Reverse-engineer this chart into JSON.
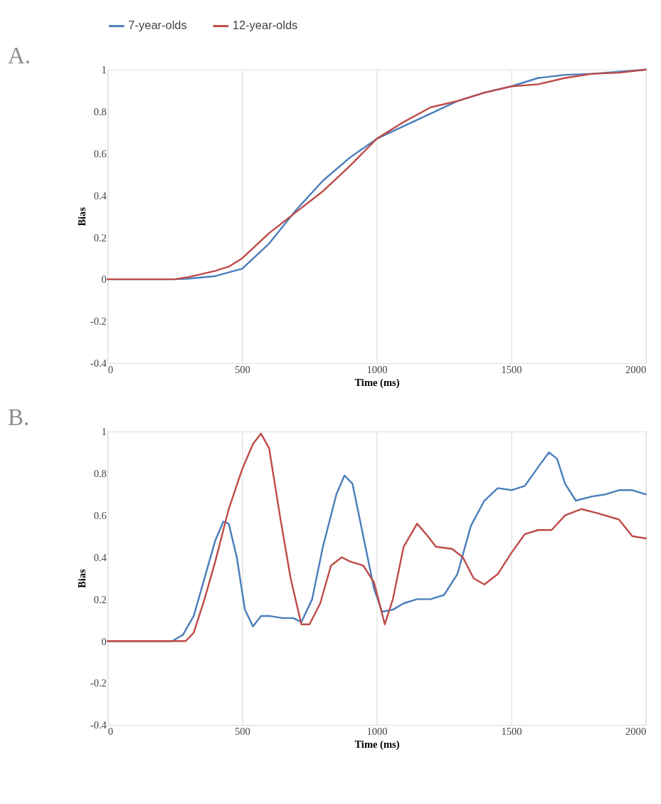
{
  "chart_data": [
    {
      "type": "line",
      "title": "A.",
      "xlabel": "Time (ms)",
      "ylabel": "Bias",
      "xlim": [
        0,
        2000
      ],
      "xticks": [
        0,
        500,
        1000,
        1500,
        2000
      ],
      "ylim": [
        -0.4,
        1
      ],
      "yticks": [
        -0.4,
        -0.2,
        0,
        0.2,
        0.4,
        0.6,
        0.8,
        1
      ],
      "grid": "x",
      "legend": "top",
      "marker": "none",
      "line_style": "solid",
      "series": [
        {
          "name": "7-year-olds",
          "color": "#4a7ebb",
          "x": [
            0,
            250,
            300,
            400,
            500,
            600,
            700,
            800,
            900,
            1000,
            1100,
            1200,
            1300,
            1400,
            1500,
            1600,
            1700,
            1800,
            1900,
            2000
          ],
          "values": [
            0,
            0,
            0.003,
            0.015,
            0.05,
            0.17,
            0.33,
            0.47,
            0.58,
            0.67,
            0.73,
            0.79,
            0.85,
            0.89,
            0.92,
            0.96,
            0.975,
            0.98,
            0.99,
            1
          ]
        },
        {
          "name": "12-year-olds",
          "color": "#be4b48",
          "x": [
            0,
            250,
            300,
            400,
            450,
            500,
            600,
            700,
            800,
            900,
            1000,
            1100,
            1200,
            1300,
            1400,
            1500,
            1600,
            1700,
            1800,
            1900,
            2000
          ],
          "values": [
            0,
            0,
            0.01,
            0.04,
            0.06,
            0.1,
            0.22,
            0.32,
            0.42,
            0.54,
            0.67,
            0.75,
            0.82,
            0.85,
            0.89,
            0.92,
            0.93,
            0.96,
            0.98,
            0.985,
            1
          ]
        }
      ]
    },
    {
      "type": "line",
      "title": "B.",
      "xlabel": "Time (ms)",
      "ylabel": "Bias",
      "xlim": [
        0,
        2000
      ],
      "xticks": [
        0,
        500,
        1000,
        1500,
        2000
      ],
      "ylim": [
        -0.4,
        1
      ],
      "yticks": [
        -0.4,
        -0.2,
        0,
        0.2,
        0.4,
        0.6,
        0.8,
        1
      ],
      "grid": "x",
      "legend": "top",
      "marker": "none",
      "line_style": "solid",
      "series": [
        {
          "name": "7-year-olds",
          "color": "#4a7ebb",
          "x": [
            0,
            240,
            280,
            320,
            360,
            400,
            430,
            450,
            480,
            510,
            540,
            570,
            600,
            650,
            690,
            720,
            760,
            800,
            850,
            880,
            910,
            950,
            990,
            1020,
            1060,
            1100,
            1150,
            1200,
            1250,
            1300,
            1350,
            1400,
            1450,
            1500,
            1550,
            1600,
            1640,
            1670,
            1700,
            1740,
            1800,
            1850,
            1900,
            1950,
            2000
          ],
          "values": [
            0,
            0,
            0.03,
            0.12,
            0.3,
            0.48,
            0.57,
            0.56,
            0.4,
            0.15,
            0.07,
            0.12,
            0.12,
            0.11,
            0.11,
            0.09,
            0.2,
            0.45,
            0.7,
            0.79,
            0.75,
            0.5,
            0.25,
            0.14,
            0.15,
            0.18,
            0.2,
            0.2,
            0.22,
            0.32,
            0.55,
            0.67,
            0.73,
            0.72,
            0.74,
            0.83,
            0.9,
            0.87,
            0.75,
            0.67,
            0.69,
            0.7,
            0.72,
            0.72,
            0.7
          ]
        },
        {
          "name": "12-year-olds",
          "color": "#be4b48",
          "x": [
            0,
            290,
            320,
            360,
            400,
            450,
            500,
            540,
            570,
            600,
            640,
            680,
            720,
            750,
            790,
            830,
            870,
            900,
            950,
            990,
            1030,
            1060,
            1100,
            1150,
            1190,
            1220,
            1280,
            1320,
            1360,
            1400,
            1450,
            1500,
            1550,
            1600,
            1650,
            1700,
            1760,
            1820,
            1900,
            1950,
            2000
          ],
          "values": [
            0,
            0,
            0.04,
            0.2,
            0.38,
            0.63,
            0.82,
            0.94,
            0.99,
            0.92,
            0.6,
            0.3,
            0.08,
            0.08,
            0.18,
            0.36,
            0.4,
            0.38,
            0.36,
            0.28,
            0.08,
            0.2,
            0.45,
            0.56,
            0.5,
            0.45,
            0.44,
            0.4,
            0.3,
            0.27,
            0.32,
            0.42,
            0.51,
            0.53,
            0.53,
            0.6,
            0.63,
            0.61,
            0.58,
            0.5,
            0.49
          ]
        }
      ]
    }
  ]
}
